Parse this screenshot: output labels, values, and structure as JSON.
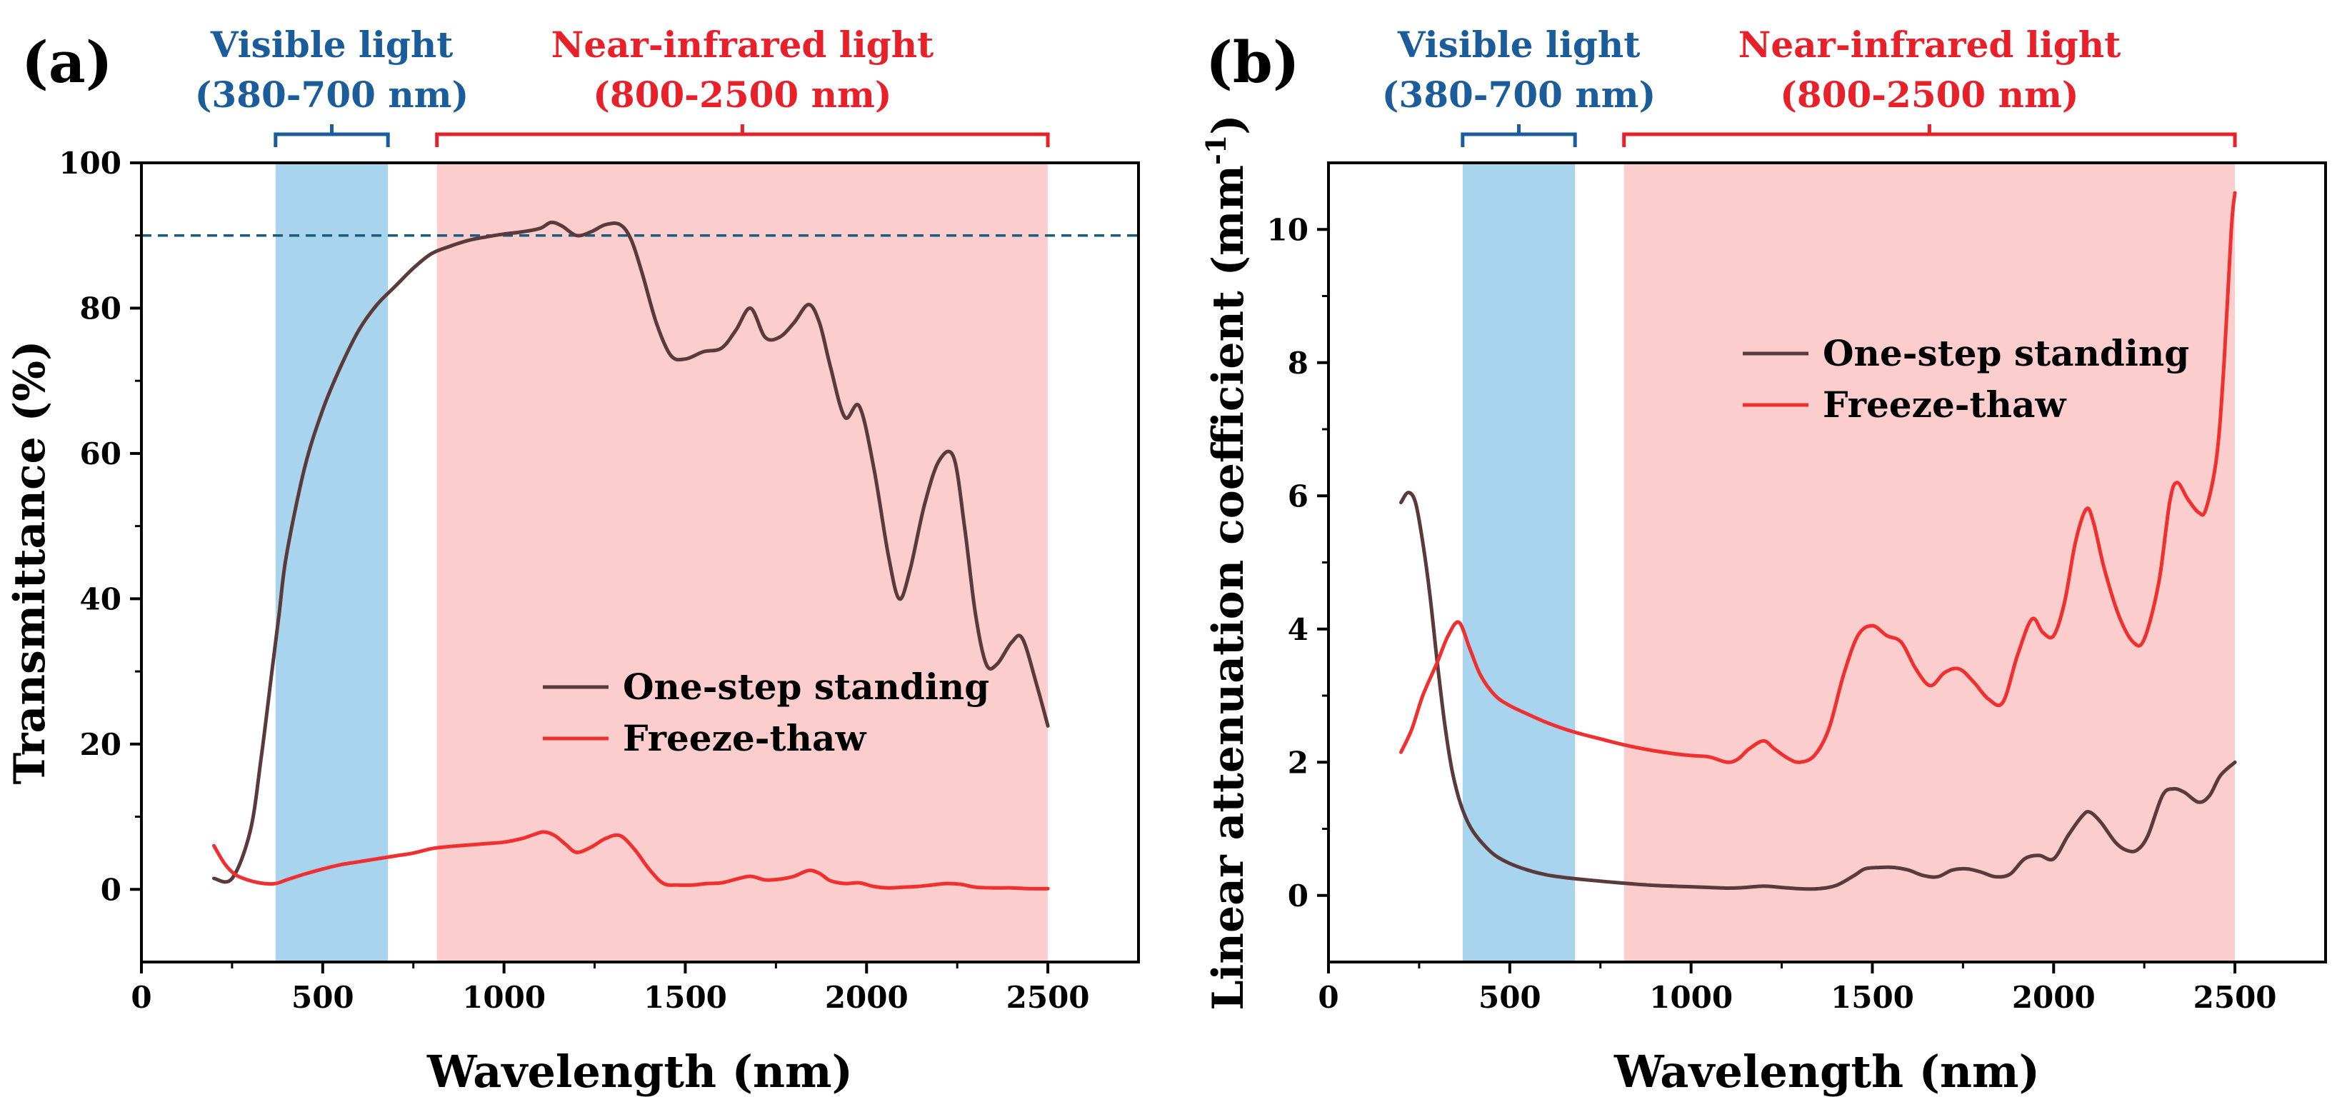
{
  "figure": {
    "colors": {
      "one_step": "#5a3a3a",
      "freeze_thaw": "#f03030",
      "visible_fill": "#a9d4ee",
      "visible_label": "#1b5c9a",
      "nir_fill": "#fbcdcd",
      "nir_label": "#e8202a",
      "axis": "#000000",
      "dashed_line": "#1b5c7a"
    }
  },
  "chart_data": [
    {
      "id": "a",
      "panel_label": "(a)",
      "type": "line",
      "xlabel": "Wavelength (nm)",
      "ylabel": "Transmittance (%)",
      "xlim": [
        0,
        2750
      ],
      "ylim": [
        -10,
        100
      ],
      "xticks": [
        0,
        500,
        1000,
        1500,
        2000,
        2500
      ],
      "yticks": [
        0,
        20,
        40,
        60,
        80,
        100
      ],
      "reference_line_y": 90,
      "bands": [
        {
          "name": "visible",
          "x0": 370,
          "x1": 680,
          "label_line1": "Visible light",
          "label_line2": "(380-700 nm)"
        },
        {
          "name": "nir",
          "x0": 815,
          "x1": 2500,
          "label_line1": "Near-infrared light",
          "label_line2": "(800-2500 nm)"
        }
      ],
      "legend": [
        "One-step standing",
        "Freeze-thaw"
      ],
      "series": [
        {
          "name": "One-step standing",
          "x": [
            200,
            250,
            300,
            330,
            360,
            380,
            400,
            450,
            500,
            550,
            600,
            650,
            700,
            750,
            800,
            850,
            900,
            950,
            1000,
            1050,
            1100,
            1130,
            1160,
            1200,
            1240,
            1280,
            1320,
            1350,
            1380,
            1420,
            1460,
            1500,
            1550,
            1600,
            1640,
            1680,
            1720,
            1760,
            1800,
            1840,
            1870,
            1900,
            1940,
            1980,
            2020,
            2060,
            2090,
            2120,
            2160,
            2200,
            2240,
            2270,
            2300,
            2330,
            2360,
            2400,
            2430,
            2470,
            2500
          ],
          "values": [
            1.5,
            1.5,
            8,
            18,
            30,
            38,
            46,
            58,
            66,
            72,
            77,
            80.5,
            83,
            85.5,
            87.5,
            88.5,
            89.3,
            89.8,
            90.2,
            90.5,
            91,
            91.8,
            91.3,
            90,
            90.5,
            91.5,
            91.5,
            89.5,
            85,
            78,
            73.5,
            73,
            74,
            74.5,
            77,
            80,
            76,
            76,
            78,
            80.5,
            78,
            72,
            65,
            66.5,
            58,
            46,
            40,
            44,
            53,
            59,
            59.5,
            50,
            38,
            31,
            31,
            34,
            34.5,
            28,
            22.5
          ]
        },
        {
          "name": "Freeze-thaw",
          "x": [
            200,
            230,
            260,
            300,
            340,
            370,
            400,
            450,
            500,
            550,
            600,
            650,
            700,
            750,
            800,
            850,
            900,
            950,
            1000,
            1050,
            1080,
            1110,
            1140,
            1170,
            1200,
            1240,
            1280,
            1320,
            1360,
            1400,
            1440,
            1480,
            1520,
            1560,
            1600,
            1640,
            1680,
            1720,
            1760,
            1800,
            1840,
            1870,
            1900,
            1940,
            1980,
            2020,
            2060,
            2100,
            2140,
            2180,
            2220,
            2260,
            2300,
            2350,
            2400,
            2450,
            2500
          ],
          "values": [
            6,
            3.5,
            2,
            1.2,
            0.8,
            0.8,
            1.3,
            2.1,
            2.8,
            3.4,
            3.8,
            4.2,
            4.6,
            5.0,
            5.6,
            5.9,
            6.1,
            6.3,
            6.5,
            7.0,
            7.5,
            7.9,
            7.4,
            6.2,
            5.1,
            5.8,
            7.0,
            7.4,
            5.5,
            2.8,
            0.8,
            0.6,
            0.6,
            0.8,
            0.9,
            1.4,
            1.8,
            1.3,
            1.4,
            1.8,
            2.6,
            2.2,
            1.2,
            0.8,
            0.9,
            0.4,
            0.2,
            0.3,
            0.4,
            0.6,
            0.8,
            0.7,
            0.3,
            0.2,
            0.2,
            0.1,
            0.1
          ]
        }
      ]
    },
    {
      "id": "b",
      "panel_label": "(b)",
      "type": "line",
      "xlabel": "Wavelength (nm)",
      "ylabel": "Linear attenuation coefficient (mm",
      "ylabel_sup": "-1",
      "ylabel_end": ")",
      "xlim": [
        0,
        2750
      ],
      "ylim": [
        -1,
        11
      ],
      "xticks": [
        0,
        500,
        1000,
        1500,
        2000,
        2500
      ],
      "yticks": [
        0,
        2,
        4,
        6,
        8,
        10
      ],
      "bands": [
        {
          "name": "visible",
          "x0": 370,
          "x1": 680,
          "label_line1": "Visible light",
          "label_line2": "(380-700 nm)"
        },
        {
          "name": "nir",
          "x0": 815,
          "x1": 2500,
          "label_line1": "Near-infrared light",
          "label_line2": "(800-2500 nm)"
        }
      ],
      "legend": [
        "One-step standing",
        "Freeze-thaw"
      ],
      "series": [
        {
          "name": "One-step standing",
          "x": [
            200,
            220,
            240,
            260,
            280,
            300,
            320,
            340,
            360,
            380,
            400,
            430,
            460,
            500,
            550,
            600,
            650,
            700,
            800,
            900,
            1000,
            1100,
            1150,
            1200,
            1250,
            1300,
            1350,
            1400,
            1450,
            1480,
            1520,
            1560,
            1600,
            1640,
            1680,
            1720,
            1760,
            1800,
            1840,
            1880,
            1920,
            1960,
            2000,
            2040,
            2080,
            2100,
            2130,
            2170,
            2200,
            2230,
            2260,
            2300,
            2330,
            2360,
            2400,
            2430,
            2460,
            2500
          ],
          "values": [
            5.9,
            6.05,
            5.9,
            5.3,
            4.5,
            3.5,
            2.6,
            1.9,
            1.45,
            1.15,
            0.95,
            0.75,
            0.6,
            0.48,
            0.38,
            0.31,
            0.27,
            0.24,
            0.19,
            0.15,
            0.13,
            0.11,
            0.12,
            0.14,
            0.12,
            0.1,
            0.1,
            0.15,
            0.3,
            0.4,
            0.42,
            0.42,
            0.38,
            0.3,
            0.28,
            0.38,
            0.4,
            0.35,
            0.28,
            0.32,
            0.55,
            0.6,
            0.55,
            0.9,
            1.2,
            1.25,
            1.1,
            0.8,
            0.68,
            0.68,
            0.9,
            1.5,
            1.6,
            1.55,
            1.4,
            1.5,
            1.8,
            2.0
          ]
        },
        {
          "name": "Freeze-thaw",
          "x": [
            200,
            230,
            260,
            300,
            330,
            360,
            390,
            420,
            460,
            500,
            550,
            600,
            650,
            700,
            750,
            800,
            850,
            900,
            950,
            1000,
            1050,
            1100,
            1130,
            1160,
            1200,
            1230,
            1270,
            1300,
            1340,
            1380,
            1420,
            1460,
            1500,
            1540,
            1580,
            1620,
            1660,
            1700,
            1740,
            1780,
            1820,
            1860,
            1900,
            1940,
            1970,
            2000,
            2030,
            2060,
            2090,
            2110,
            2140,
            2180,
            2220,
            2250,
            2290,
            2320,
            2340,
            2370,
            2400,
            2420,
            2450,
            2470,
            2490,
            2500
          ],
          "values": [
            2.15,
            2.5,
            3.0,
            3.5,
            3.9,
            4.1,
            3.7,
            3.3,
            3.0,
            2.85,
            2.72,
            2.6,
            2.5,
            2.42,
            2.35,
            2.28,
            2.22,
            2.17,
            2.13,
            2.1,
            2.08,
            2.0,
            2.05,
            2.2,
            2.32,
            2.2,
            2.05,
            2.0,
            2.1,
            2.5,
            3.3,
            3.9,
            4.05,
            3.9,
            3.8,
            3.4,
            3.15,
            3.35,
            3.4,
            3.2,
            2.95,
            2.9,
            3.6,
            4.15,
            3.95,
            3.9,
            4.4,
            5.3,
            5.8,
            5.6,
            4.9,
            4.2,
            3.8,
            3.85,
            4.7,
            5.9,
            6.2,
            5.95,
            5.75,
            5.8,
            6.6,
            8.0,
            10.0,
            10.55
          ]
        }
      ]
    }
  ]
}
